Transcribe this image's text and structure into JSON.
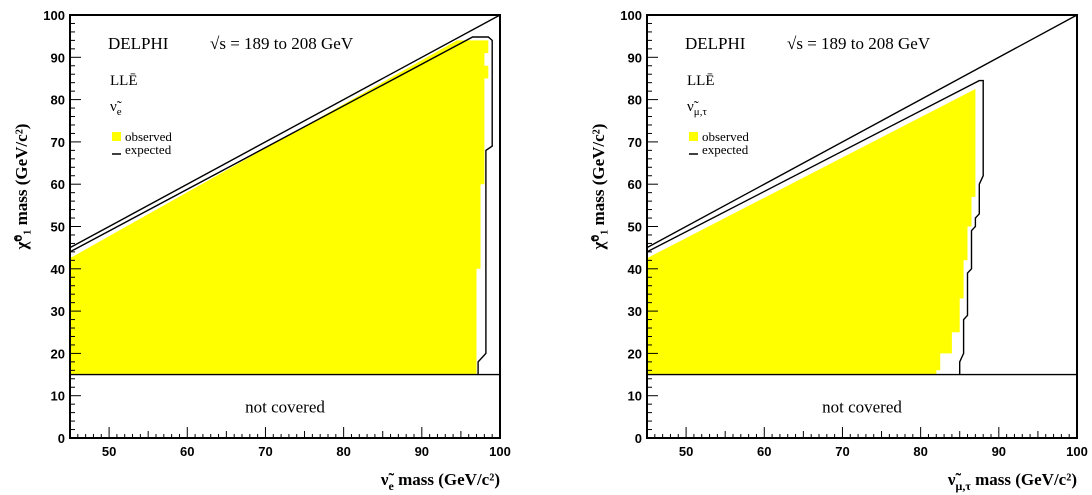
{
  "chart_data": [
    {
      "type": "area",
      "experiment": "DELPHI",
      "energy_label": "√s = 189 to 208 GeV",
      "model_label": "LLĒ",
      "particle_label": "ν̃",
      "particle_sub": "e",
      "xlabel": "ν̃",
      "xlabel_sub": "e",
      "xlabel_rest": "mass (GeV/c²)",
      "ylabel": "χ̃⁰₁ mass (GeV/c²)",
      "xlim": [
        45,
        100
      ],
      "ylim": [
        0,
        100
      ],
      "xticks": [
        50,
        60,
        70,
        80,
        90,
        100
      ],
      "yticks": [
        0,
        10,
        20,
        30,
        40,
        50,
        60,
        70,
        80,
        90,
        100
      ],
      "not_covered_label": "not covered",
      "not_covered_below": 15,
      "kinematic_limit": [
        [
          45,
          45
        ],
        [
          100,
          100
        ]
      ],
      "legend": [
        {
          "name": "observed",
          "style": "fill",
          "color": "#ffff00"
        },
        {
          "name": "expected",
          "style": "line",
          "color": "#000000"
        }
      ],
      "series": [
        {
          "name": "observed",
          "color": "#ffff00",
          "polygon": [
            [
              45,
              15
            ],
            [
              97,
              15
            ],
            [
              97,
              40
            ],
            [
              97.5,
              40
            ],
            [
              97.5,
              60
            ],
            [
              98,
              60
            ],
            [
              98,
              85
            ],
            [
              98.5,
              85
            ],
            [
              98.5,
              88
            ],
            [
              98,
              88
            ],
            [
              98,
              91
            ],
            [
              98.5,
              91
            ],
            [
              98.5,
              94
            ],
            [
              97.5,
              94
            ],
            [
              94.5,
              94
            ],
            [
              45,
              42.5
            ]
          ]
        },
        {
          "name": "expected",
          "color": "#000000",
          "polyline": [
            [
              45,
              44
            ],
            [
              96.5,
              94.8
            ],
            [
              98.5,
              94.8
            ],
            [
              99,
              94
            ],
            [
              99,
              69
            ],
            [
              98.2,
              68
            ],
            [
              98.2,
              20
            ],
            [
              97.2,
              18
            ],
            [
              97.2,
              15
            ]
          ]
        }
      ]
    },
    {
      "type": "area",
      "experiment": "DELPHI",
      "energy_label": "√s = 189 to 208 GeV",
      "model_label": "LLĒ",
      "particle_label": "ν̃",
      "particle_sub": "μ,τ",
      "xlabel": "ν̃",
      "xlabel_sub": "μ,τ",
      "xlabel_rest": "mass (GeV/c²)",
      "ylabel": "χ̃⁰₁ mass (GeV/c²)",
      "xlim": [
        45,
        100
      ],
      "ylim": [
        0,
        100
      ],
      "xticks": [
        50,
        60,
        70,
        80,
        90,
        100
      ],
      "yticks": [
        0,
        10,
        20,
        30,
        40,
        50,
        60,
        70,
        80,
        90,
        100
      ],
      "not_covered_label": "not covered",
      "not_covered_below": 15,
      "kinematic_limit": [
        [
          45,
          45
        ],
        [
          100,
          100
        ]
      ],
      "legend": [
        {
          "name": "observed",
          "style": "fill",
          "color": "#ffff00"
        },
        {
          "name": "expected",
          "style": "line",
          "color": "#000000"
        }
      ],
      "series": [
        {
          "name": "observed",
          "color": "#ffff00",
          "polygon": [
            [
              45,
              15
            ],
            [
              82,
              15
            ],
            [
              82,
              16
            ],
            [
              82.5,
              16
            ],
            [
              82.5,
              20
            ],
            [
              84,
              20
            ],
            [
              84,
              25
            ],
            [
              85,
              25
            ],
            [
              85,
              33
            ],
            [
              85.5,
              33
            ],
            [
              85.5,
              42
            ],
            [
              86,
              42
            ],
            [
              86,
              50
            ],
            [
              86.5,
              50
            ],
            [
              86.5,
              57
            ],
            [
              87,
              57
            ],
            [
              87,
              82.5
            ],
            [
              45,
              42.5
            ]
          ]
        },
        {
          "name": "expected",
          "color": "#000000",
          "polyline": [
            [
              45,
              44
            ],
            [
              87.5,
              84.5
            ],
            [
              88,
              84.5
            ],
            [
              88,
              62
            ],
            [
              87.5,
              60
            ],
            [
              87.5,
              53
            ],
            [
              87,
              52
            ],
            [
              87,
              50
            ],
            [
              86.5,
              49
            ],
            [
              86.5,
              40
            ],
            [
              86,
              39
            ],
            [
              86,
              29
            ],
            [
              85.5,
              28
            ],
            [
              85.5,
              20
            ],
            [
              85,
              18
            ],
            [
              85,
              15
            ]
          ]
        }
      ]
    }
  ]
}
